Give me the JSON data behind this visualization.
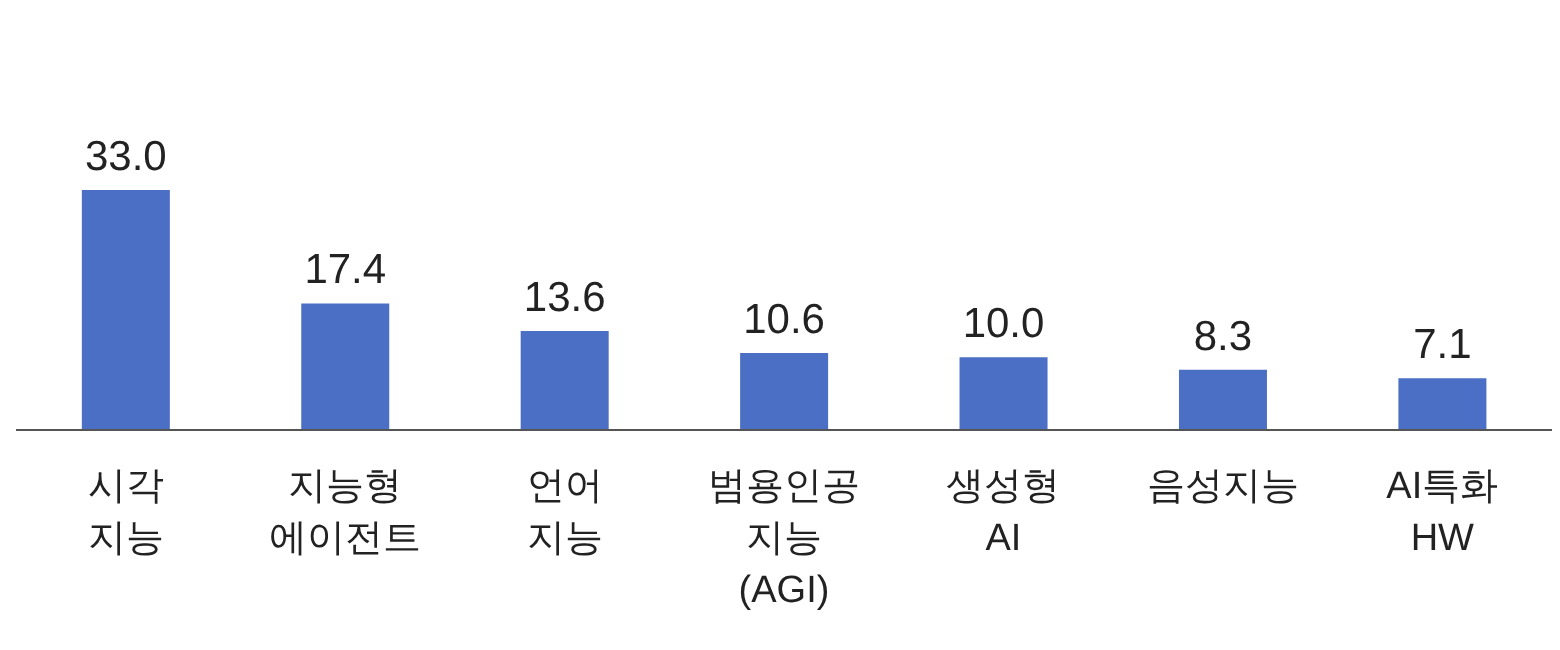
{
  "chart_data": {
    "type": "bar",
    "relative": false,
    "categories": [
      "시각\n지능",
      "지능형\n에이전트",
      "언어\n지능",
      "범용인공\n지능\n(AGI)",
      "생성형\nAI",
      "음성지능",
      "AI특화\nHW"
    ],
    "series": [
      {
        "color": "#4a6fc4",
        "values": [
          33.0,
          17.4,
          13.6,
          10.6,
          10.0,
          8.3,
          7.1
        ],
        "value_labels": [
          "33.0",
          "17.4",
          "13.6",
          "10.6",
          "10.0",
          "8.3",
          "7.1"
        ]
      }
    ]
  }
}
